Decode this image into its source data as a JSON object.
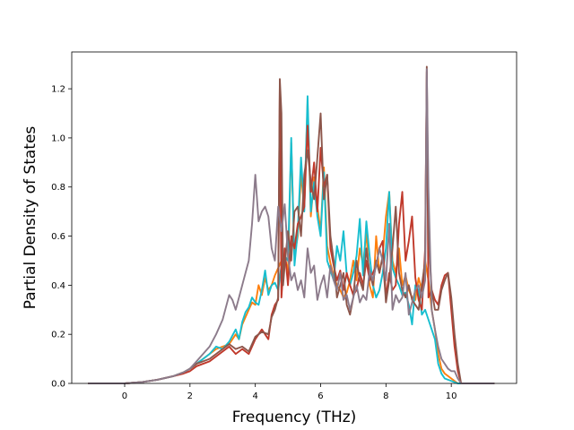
{
  "chart_data": {
    "type": "line",
    "title": "",
    "xlabel": "Frequency (THz)",
    "ylabel": "Partial Density of States",
    "xlim": [
      -1.62,
      12.0
    ],
    "ylim": [
      0.0,
      1.35
    ],
    "xticks": [
      0,
      2,
      4,
      6,
      8,
      10
    ],
    "yticks": [
      0.0,
      0.2,
      0.4,
      0.6,
      0.8,
      1.0,
      1.2
    ],
    "grid": false,
    "legend": "none",
    "series": [
      {
        "color": "#ff7f0e",
        "x": [
          -1.1,
          0.0,
          0.5,
          1.0,
          1.5,
          1.8,
          2.0,
          2.2,
          2.4,
          2.6,
          2.8,
          3.0,
          3.2,
          3.4,
          3.5,
          3.6,
          3.7,
          3.8,
          3.9,
          4.0,
          4.1,
          4.2,
          4.3,
          4.4,
          4.5,
          4.6,
          4.7,
          4.8,
          4.9,
          5.0,
          5.1,
          5.2,
          5.3,
          5.4,
          5.5,
          5.6,
          5.7,
          5.8,
          5.9,
          6.0,
          6.1,
          6.2,
          6.3,
          6.4,
          6.5,
          6.6,
          6.7,
          6.8,
          6.9,
          7.0,
          7.1,
          7.2,
          7.3,
          7.4,
          7.5,
          7.6,
          7.7,
          7.8,
          7.9,
          8.0,
          8.1,
          8.2,
          8.3,
          8.4,
          8.5,
          8.6,
          8.7,
          8.8,
          8.9,
          9.0,
          9.1,
          9.2,
          9.3,
          9.4,
          9.5,
          9.6,
          9.7,
          9.8,
          9.9,
          10.0,
          10.1,
          10.2,
          10.3,
          11.3
        ],
        "values": [
          0.0,
          0.0,
          0.005,
          0.015,
          0.03,
          0.045,
          0.06,
          0.08,
          0.1,
          0.12,
          0.14,
          0.15,
          0.16,
          0.2,
          0.18,
          0.24,
          0.27,
          0.3,
          0.33,
          0.32,
          0.4,
          0.36,
          0.43,
          0.38,
          0.4,
          0.44,
          0.47,
          0.5,
          0.52,
          0.45,
          0.98,
          0.52,
          0.6,
          0.85,
          0.72,
          1.14,
          0.68,
          0.84,
          0.72,
          0.62,
          0.88,
          0.56,
          0.49,
          0.44,
          0.4,
          0.38,
          0.35,
          0.37,
          0.42,
          0.5,
          0.42,
          0.55,
          0.48,
          0.62,
          0.4,
          0.35,
          0.6,
          0.45,
          0.52,
          0.68,
          0.78,
          0.5,
          0.45,
          0.55,
          0.4,
          0.44,
          0.38,
          0.35,
          0.34,
          0.43,
          0.38,
          0.5,
          0.42,
          0.3,
          0.22,
          0.12,
          0.06,
          0.04,
          0.03,
          0.02,
          0.01,
          0.0,
          0.0,
          0.0
        ]
      },
      {
        "color": "#17becf",
        "x": [
          -1.1,
          0.0,
          0.5,
          1.0,
          1.5,
          1.8,
          2.0,
          2.2,
          2.4,
          2.6,
          2.8,
          3.0,
          3.2,
          3.4,
          3.5,
          3.6,
          3.7,
          3.8,
          3.9,
          4.0,
          4.1,
          4.2,
          4.3,
          4.4,
          4.5,
          4.6,
          4.7,
          4.8,
          4.9,
          5.0,
          5.1,
          5.2,
          5.3,
          5.4,
          5.5,
          5.6,
          5.7,
          5.8,
          5.9,
          6.0,
          6.1,
          6.2,
          6.3,
          6.4,
          6.5,
          6.6,
          6.7,
          6.8,
          6.9,
          7.0,
          7.1,
          7.2,
          7.3,
          7.4,
          7.5,
          7.6,
          7.7,
          7.8,
          7.9,
          8.0,
          8.1,
          8.2,
          8.3,
          8.4,
          8.5,
          8.6,
          8.7,
          8.8,
          8.9,
          9.0,
          9.1,
          9.2,
          9.3,
          9.4,
          9.5,
          9.6,
          9.7,
          9.8,
          9.9,
          10.0,
          10.1,
          10.2,
          10.3,
          11.3
        ],
        "values": [
          0.0,
          0.0,
          0.005,
          0.015,
          0.03,
          0.045,
          0.06,
          0.08,
          0.1,
          0.12,
          0.15,
          0.14,
          0.17,
          0.22,
          0.18,
          0.25,
          0.29,
          0.31,
          0.35,
          0.33,
          0.32,
          0.38,
          0.46,
          0.36,
          0.4,
          0.41,
          0.38,
          0.48,
          0.52,
          0.5,
          1.0,
          0.48,
          0.62,
          0.92,
          0.7,
          1.17,
          0.7,
          0.82,
          0.68,
          0.6,
          0.86,
          0.5,
          0.46,
          0.42,
          0.56,
          0.5,
          0.62,
          0.44,
          0.4,
          0.45,
          0.52,
          0.67,
          0.44,
          0.66,
          0.52,
          0.4,
          0.35,
          0.38,
          0.45,
          0.55,
          0.78,
          0.47,
          0.43,
          0.4,
          0.36,
          0.37,
          0.32,
          0.24,
          0.4,
          0.38,
          0.28,
          0.3,
          0.26,
          0.22,
          0.18,
          0.08,
          0.04,
          0.02,
          0.015,
          0.01,
          0.005,
          0.0,
          0.0,
          0.0
        ]
      },
      {
        "color": "#c0392b",
        "x": [
          -1.1,
          0.0,
          0.5,
          1.0,
          1.5,
          1.8,
          2.0,
          2.2,
          2.4,
          2.6,
          2.8,
          3.0,
          3.2,
          3.4,
          3.6,
          3.8,
          4.0,
          4.1,
          4.2,
          4.3,
          4.4,
          4.5,
          4.6,
          4.7,
          4.75,
          4.8,
          4.9,
          5.0,
          5.1,
          5.2,
          5.3,
          5.4,
          5.5,
          5.6,
          5.7,
          5.8,
          5.9,
          6.0,
          6.1,
          6.2,
          6.3,
          6.4,
          6.5,
          6.6,
          6.7,
          6.8,
          6.9,
          7.0,
          7.1,
          7.2,
          7.3,
          7.4,
          7.5,
          7.6,
          7.7,
          7.8,
          7.9,
          8.0,
          8.1,
          8.2,
          8.3,
          8.4,
          8.5,
          8.6,
          8.7,
          8.8,
          8.9,
          9.0,
          9.1,
          9.2,
          9.25,
          9.3,
          9.4,
          9.5,
          9.6,
          9.7,
          9.8,
          9.9,
          10.0,
          10.1,
          10.2,
          10.3,
          11.3
        ],
        "values": [
          0.0,
          0.0,
          0.005,
          0.015,
          0.03,
          0.04,
          0.05,
          0.07,
          0.08,
          0.09,
          0.11,
          0.13,
          0.15,
          0.12,
          0.14,
          0.12,
          0.18,
          0.2,
          0.22,
          0.2,
          0.18,
          0.28,
          0.32,
          0.34,
          1.22,
          0.35,
          0.55,
          0.4,
          0.6,
          0.55,
          0.65,
          0.68,
          0.72,
          1.05,
          0.78,
          0.9,
          0.7,
          0.96,
          0.8,
          0.85,
          0.55,
          0.48,
          0.42,
          0.46,
          0.38,
          0.45,
          0.4,
          0.36,
          0.38,
          0.45,
          0.4,
          0.5,
          0.42,
          0.45,
          0.48,
          0.55,
          0.58,
          0.35,
          0.45,
          0.38,
          0.4,
          0.65,
          0.78,
          0.5,
          0.58,
          0.68,
          0.43,
          0.34,
          0.3,
          0.55,
          1.27,
          0.35,
          0.38,
          0.34,
          0.32,
          0.4,
          0.44,
          0.45,
          0.3,
          0.15,
          0.05,
          0.0,
          0.0
        ]
      },
      {
        "color": "#8c564b",
        "x": [
          -1.1,
          0.0,
          0.5,
          1.0,
          1.5,
          1.8,
          2.0,
          2.2,
          2.4,
          2.6,
          2.8,
          3.0,
          3.2,
          3.4,
          3.6,
          3.8,
          4.0,
          4.2,
          4.4,
          4.5,
          4.6,
          4.7,
          4.75,
          4.8,
          4.85,
          4.9,
          5.0,
          5.1,
          5.2,
          5.3,
          5.4,
          5.5,
          5.6,
          5.7,
          5.8,
          5.9,
          6.0,
          6.1,
          6.2,
          6.3,
          6.4,
          6.5,
          6.6,
          6.7,
          6.8,
          6.9,
          7.0,
          7.1,
          7.2,
          7.3,
          7.4,
          7.5,
          7.6,
          7.7,
          7.8,
          7.9,
          8.0,
          8.1,
          8.2,
          8.3,
          8.4,
          8.5,
          8.6,
          8.7,
          8.8,
          8.9,
          9.0,
          9.1,
          9.2,
          9.25,
          9.3,
          9.4,
          9.5,
          9.6,
          9.7,
          9.8,
          9.9,
          10.0,
          10.1,
          10.2,
          10.3,
          11.3
        ],
        "values": [
          0.0,
          0.0,
          0.005,
          0.015,
          0.03,
          0.045,
          0.06,
          0.08,
          0.09,
          0.1,
          0.12,
          0.14,
          0.16,
          0.14,
          0.15,
          0.13,
          0.19,
          0.21,
          0.2,
          0.27,
          0.3,
          0.35,
          1.24,
          1.1,
          0.4,
          0.48,
          0.62,
          0.5,
          0.7,
          0.72,
          0.6,
          0.85,
          0.95,
          0.82,
          0.75,
          0.92,
          1.1,
          0.75,
          0.85,
          0.6,
          0.5,
          0.35,
          0.4,
          0.45,
          0.32,
          0.28,
          0.35,
          0.5,
          0.42,
          0.38,
          0.55,
          0.45,
          0.4,
          0.5,
          0.45,
          0.52,
          0.33,
          0.42,
          0.55,
          0.72,
          0.45,
          0.38,
          0.35,
          0.4,
          0.34,
          0.32,
          0.3,
          0.4,
          0.5,
          1.29,
          0.6,
          0.38,
          0.3,
          0.3,
          0.38,
          0.42,
          0.45,
          0.35,
          0.2,
          0.08,
          0.0,
          0.0
        ]
      },
      {
        "color": "#8c7b8b",
        "x": [
          -1.1,
          0.0,
          0.5,
          1.0,
          1.5,
          1.8,
          2.0,
          2.2,
          2.4,
          2.6,
          2.8,
          3.0,
          3.2,
          3.3,
          3.4,
          3.5,
          3.6,
          3.7,
          3.8,
          3.9,
          4.0,
          4.1,
          4.2,
          4.3,
          4.4,
          4.5,
          4.6,
          4.7,
          4.8,
          4.9,
          5.0,
          5.1,
          5.2,
          5.3,
          5.4,
          5.5,
          5.6,
          5.7,
          5.8,
          5.9,
          6.0,
          6.1,
          6.2,
          6.3,
          6.4,
          6.5,
          6.6,
          6.7,
          6.8,
          6.9,
          7.0,
          7.1,
          7.2,
          7.3,
          7.4,
          7.5,
          7.6,
          7.7,
          7.8,
          7.9,
          8.0,
          8.1,
          8.2,
          8.3,
          8.4,
          8.5,
          8.6,
          8.7,
          8.8,
          8.9,
          9.0,
          9.1,
          9.2,
          9.25,
          9.3,
          9.4,
          9.5,
          9.6,
          9.7,
          9.8,
          9.9,
          10.0,
          10.1,
          10.2,
          10.3,
          11.3
        ],
        "values": [
          0.0,
          0.0,
          0.005,
          0.015,
          0.03,
          0.045,
          0.06,
          0.09,
          0.12,
          0.15,
          0.2,
          0.26,
          0.36,
          0.34,
          0.3,
          0.35,
          0.4,
          0.45,
          0.5,
          0.65,
          0.85,
          0.66,
          0.7,
          0.72,
          0.68,
          0.55,
          0.5,
          0.72,
          0.62,
          0.73,
          0.52,
          0.42,
          0.45,
          0.38,
          0.42,
          0.35,
          0.55,
          0.45,
          0.48,
          0.34,
          0.4,
          0.44,
          0.35,
          0.48,
          0.42,
          0.38,
          0.45,
          0.34,
          0.36,
          0.3,
          0.35,
          0.4,
          0.33,
          0.36,
          0.34,
          0.46,
          0.42,
          0.48,
          0.55,
          0.5,
          0.42,
          0.65,
          0.3,
          0.36,
          0.33,
          0.35,
          0.45,
          0.28,
          0.33,
          0.38,
          0.4,
          0.35,
          0.42,
          1.28,
          0.8,
          0.3,
          0.22,
          0.15,
          0.1,
          0.08,
          0.06,
          0.05,
          0.05,
          0.02,
          0.0,
          0.0
        ]
      }
    ]
  }
}
